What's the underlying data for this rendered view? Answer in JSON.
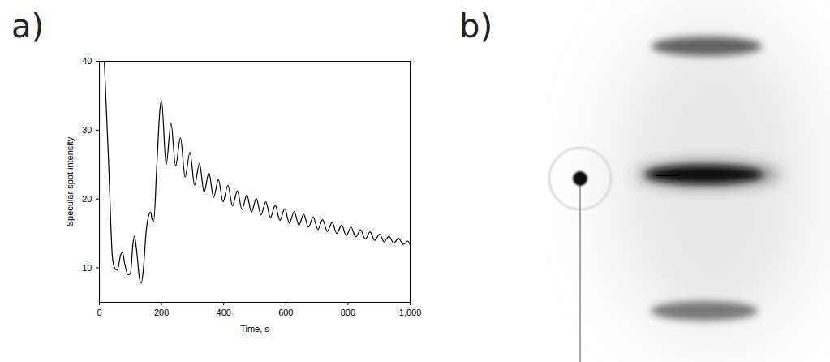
{
  "chart_data": [
    {
      "panel": "a)",
      "type": "line",
      "xlabel": "Time, s",
      "ylabel": "Specular spot intensity",
      "xlim": [
        0,
        1000
      ],
      "ylim": [
        5,
        40
      ],
      "xticks": [
        0,
        200,
        400,
        600,
        800,
        1000
      ],
      "yticks": [
        10,
        20,
        30,
        40
      ],
      "color": "#000000",
      "x": [
        16,
        30,
        42,
        45,
        52,
        58,
        68,
        74,
        82,
        92,
        100,
        108,
        113,
        120,
        130,
        135,
        142,
        150,
        160,
        165,
        170,
        175,
        185,
        195,
        200,
        215,
        230.5,
        245.5,
        261,
        276,
        291.5,
        306.5,
        322,
        337,
        352.5,
        367.5,
        383,
        398,
        413.5,
        428.5,
        444,
        459,
        474.5,
        489.5,
        505,
        520,
        535.5,
        550.5,
        566,
        581,
        596.5,
        611.5,
        627,
        642,
        657.5,
        672.5,
        688,
        703,
        718.5,
        733.5,
        749,
        764,
        779.5,
        794.5,
        810,
        825,
        840.5,
        855.5,
        871,
        886,
        901.5,
        916.5,
        932,
        947,
        962.5,
        977.5,
        993,
        1000
      ],
      "values": [
        40,
        25,
        11.5,
        10.6,
        9.8,
        9.7,
        11.8,
        12.3,
        10.5,
        9.0,
        9.2,
        13.5,
        14.6,
        12.5,
        8.2,
        7.8,
        10,
        15,
        17.8,
        18.1,
        17,
        16.8,
        25,
        33,
        34.3,
        25.0,
        31.0,
        24.8,
        28.9,
        23.2,
        26.8,
        22.0,
        25.2,
        21.0,
        23.8,
        20.2,
        22.8,
        19.6,
        22.0,
        19.0,
        21.2,
        18.5,
        20.6,
        18.1,
        20.1,
        17.7,
        19.6,
        17.3,
        19.1,
        16.9,
        18.6,
        16.5,
        18.2,
        16.2,
        17.8,
        15.9,
        17.4,
        15.6,
        17.0,
        15.3,
        16.6,
        15.0,
        16.2,
        14.7,
        15.9,
        14.5,
        15.5,
        14.2,
        15.2,
        14.0,
        14.9,
        13.8,
        14.6,
        13.6,
        14.3,
        13.4,
        13.9,
        13.3
      ]
    },
    {
      "panel": "b)",
      "type": "image"
    }
  ]
}
